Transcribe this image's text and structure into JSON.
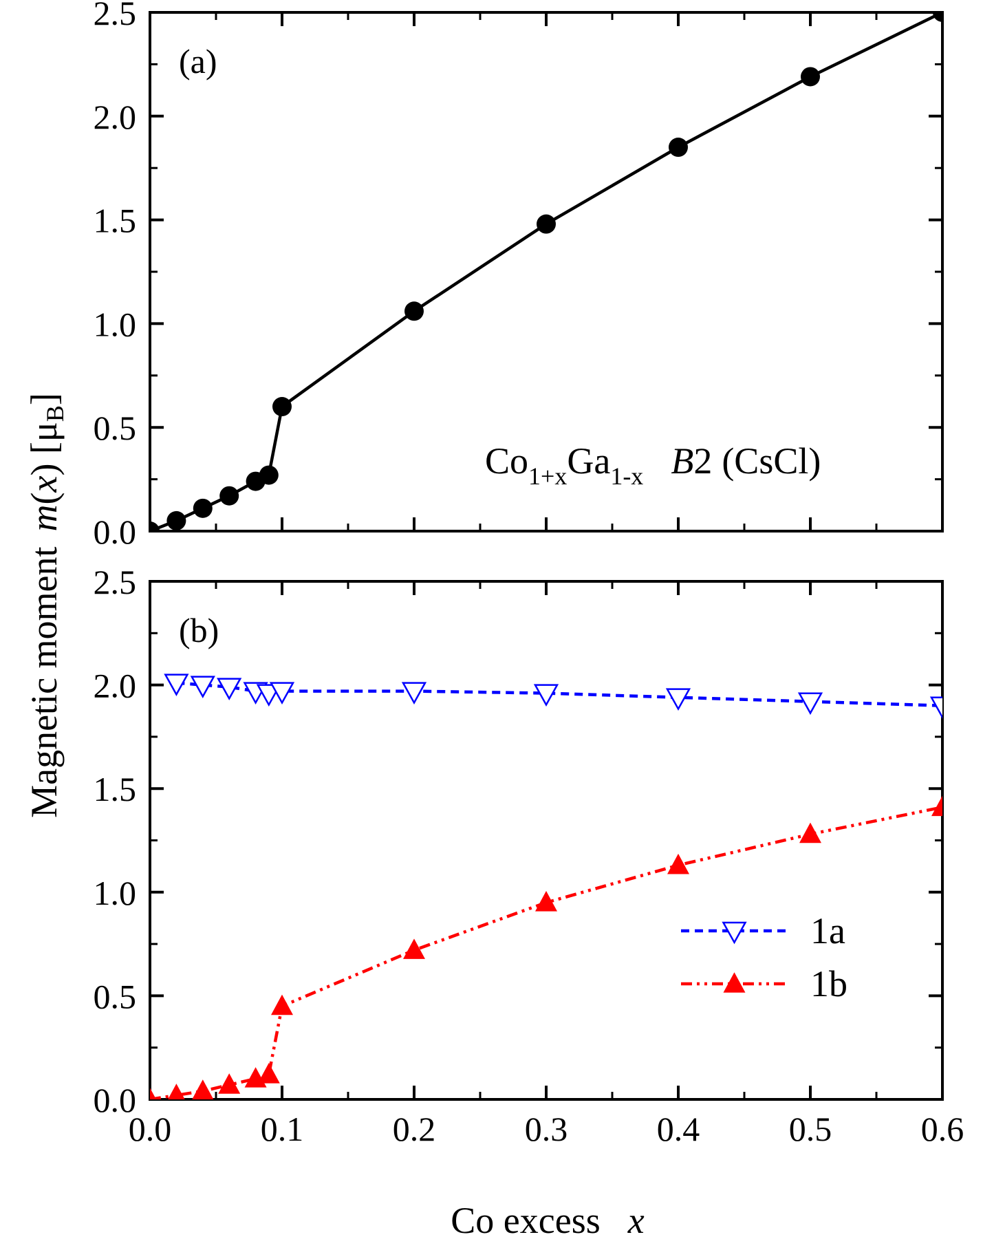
{
  "figure": {
    "ylabel_prefix": "Magnetic moment",
    "ylabel_m": "m",
    "ylabel_x": "x",
    "ylabel_mu": "μ",
    "ylabel_B": "B",
    "xlabel_text": "Co excess",
    "xlabel_var": "x"
  },
  "chart_data": [
    {
      "type": "line",
      "panel_label": "(a)",
      "xlim": [
        0.0,
        0.6
      ],
      "ylim": [
        0.0,
        2.5
      ],
      "xticks": [
        "0.0",
        "0.1",
        "0.2",
        "0.3",
        "0.4",
        "0.5",
        "0.6"
      ],
      "yticks": [
        "0.0",
        "0.5",
        "1.0",
        "1.5",
        "2.0",
        "2.5"
      ],
      "annotation": {
        "co": "Co",
        "co_sub": "1+x",
        "ga": "Ga",
        "ga_sub": "1-x",
        "b2": "B",
        "b2_num": "2",
        "structure": "(CsCl)"
      },
      "series": [
        {
          "color": "#000000",
          "marker": "circle",
          "line": "solid",
          "x": [
            0.0,
            0.02,
            0.04,
            0.06,
            0.08,
            0.09,
            0.1,
            0.2,
            0.3,
            0.4,
            0.5,
            0.6
          ],
          "y": [
            0.0,
            0.05,
            0.11,
            0.17,
            0.24,
            0.27,
            0.6,
            1.06,
            1.48,
            1.85,
            2.19,
            2.5
          ]
        }
      ]
    },
    {
      "type": "line",
      "panel_label": "(b)",
      "xlim": [
        0.0,
        0.6
      ],
      "ylim": [
        0.0,
        2.5
      ],
      "xticks": [
        "0.0",
        "0.1",
        "0.2",
        "0.3",
        "0.4",
        "0.5",
        "0.6"
      ],
      "yticks": [
        "0.0",
        "0.5",
        "1.0",
        "1.5",
        "2.0",
        "2.5"
      ],
      "legend_position": "bottom-right",
      "series": [
        {
          "name": "1a",
          "color": "#0000ff",
          "marker": "triangle-down-open",
          "line": "dashed",
          "x": [
            0.02,
            0.04,
            0.06,
            0.08,
            0.09,
            0.1,
            0.2,
            0.3,
            0.4,
            0.5,
            0.6
          ],
          "y": [
            2.01,
            2.0,
            1.99,
            1.97,
            1.96,
            1.97,
            1.97,
            1.96,
            1.94,
            1.92,
            1.9
          ]
        },
        {
          "name": "1b",
          "color": "#ff0000",
          "marker": "triangle-up-filled",
          "line": "dash-dot-dot",
          "x": [
            0.0,
            0.02,
            0.04,
            0.06,
            0.08,
            0.09,
            0.1,
            0.2,
            0.3,
            0.4,
            0.5,
            0.6
          ],
          "y": [
            0.0,
            0.02,
            0.04,
            0.07,
            0.1,
            0.12,
            0.45,
            0.72,
            0.95,
            1.13,
            1.28,
            1.41
          ]
        }
      ]
    }
  ]
}
